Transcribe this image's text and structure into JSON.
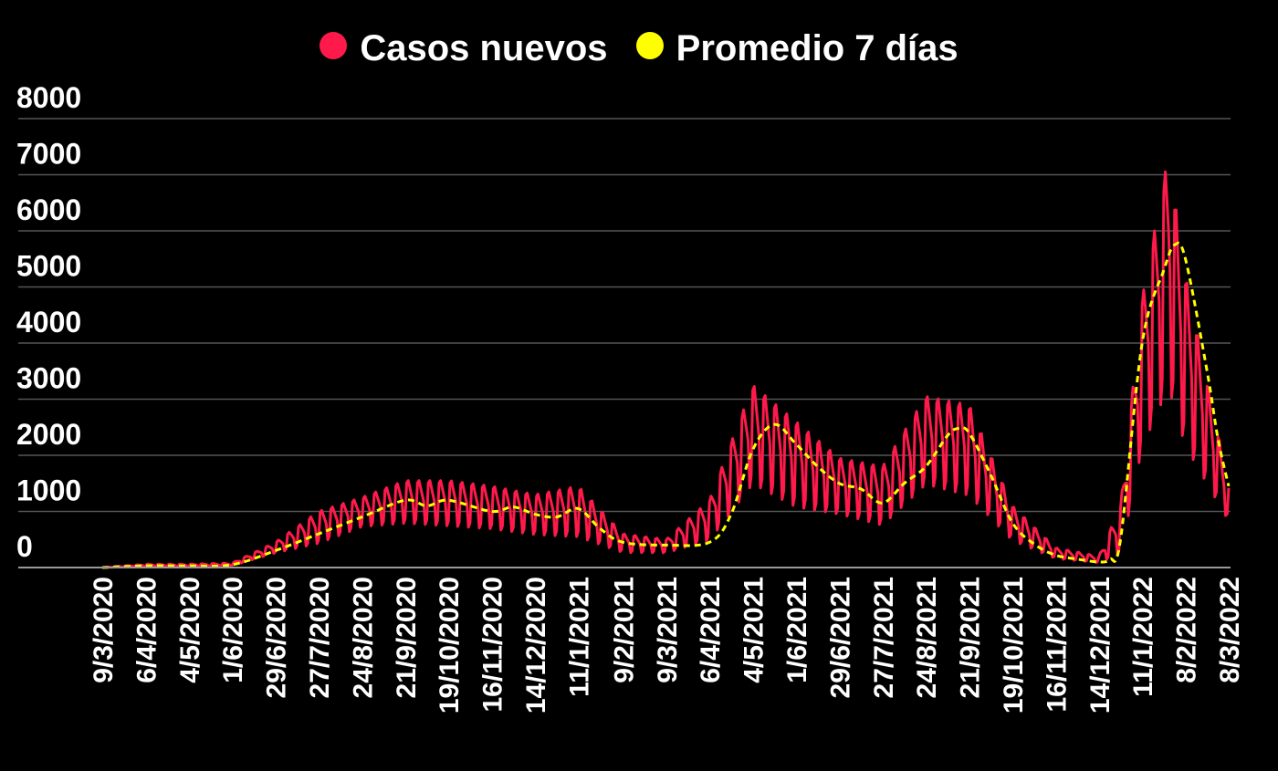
{
  "chart_data": {
    "type": "line",
    "title": "",
    "xlabel": "",
    "ylabel": "",
    "ylim": [
      0,
      8000
    ],
    "yticks": [
      0,
      1000,
      2000,
      3000,
      4000,
      5000,
      6000,
      7000,
      8000
    ],
    "grid": true,
    "legend_position": "top-center",
    "x_tick_labels": [
      "9/3/2020",
      "6/4/2020",
      "4/5/2020",
      "1/6/2020",
      "29/6/2020",
      "27/7/2020",
      "24/8/2020",
      "21/9/2020",
      "19/10/2020",
      "16/11/2020",
      "14/12/2020",
      "11/1/2021",
      "9/2/2021",
      "9/3/2021",
      "6/4/2021",
      "4/5/2021",
      "1/6/2021",
      "29/6/2021",
      "27/7/2021",
      "24/8/2021",
      "21/9/2021",
      "19/10/2021",
      "16/11/2021",
      "14/12/2021",
      "11/1/2022",
      "8/2/2022",
      "8/3/2022"
    ],
    "x_start": "9/3/2020",
    "x_end": "8/3/2022",
    "series": [
      {
        "name": "Casos nuevos",
        "color": "#ff1a4b",
        "style": "solid",
        "weekly_pattern": "oscillating daily values around the 7-day average",
        "envelope": [
          [
            "9/3/2020",
            0,
            0
          ],
          [
            "6/4/2020",
            20,
            60
          ],
          [
            "4/5/2020",
            20,
            60
          ],
          [
            "1/6/2020",
            30,
            80
          ],
          [
            "29/6/2020",
            250,
            450
          ],
          [
            "27/7/2020",
            400,
            1000
          ],
          [
            "24/8/2020",
            700,
            1250
          ],
          [
            "21/9/2020",
            750,
            1550
          ],
          [
            "19/10/2020",
            700,
            1550
          ],
          [
            "16/11/2020",
            650,
            1450
          ],
          [
            "14/12/2020",
            550,
            1300
          ],
          [
            "11/1/2021",
            500,
            1450
          ],
          [
            "9/2/2021",
            250,
            600
          ],
          [
            "9/3/2021",
            250,
            500
          ],
          [
            "6/4/2021",
            450,
            1200
          ],
          [
            "4/5/2021",
            1400,
            3250
          ],
          [
            "1/6/2021",
            1000,
            2600
          ],
          [
            "29/6/2021",
            900,
            1950
          ],
          [
            "27/7/2021",
            700,
            1800
          ],
          [
            "24/8/2021",
            1400,
            3050
          ],
          [
            "21/9/2021",
            1200,
            2900
          ],
          [
            "19/10/2021",
            450,
            1100
          ],
          [
            "16/11/2021",
            150,
            350
          ],
          [
            "14/12/2021",
            80,
            200
          ],
          [
            "28/12/2021",
            200,
            1100
          ],
          [
            "11/1/2022",
            2000,
            4800
          ],
          [
            "28/1/2022",
            3000,
            7350
          ],
          [
            "8/2/2022",
            2000,
            5200
          ],
          [
            "8/3/2022",
            800,
            1450
          ]
        ]
      },
      {
        "name": "Promedio 7 días",
        "color": "#ffff00",
        "style": "dashed",
        "points": [
          [
            "9/3/2020",
            0
          ],
          [
            "6/4/2020",
            30
          ],
          [
            "4/5/2020",
            30
          ],
          [
            "1/6/2020",
            50
          ],
          [
            "29/6/2020",
            300
          ],
          [
            "27/7/2020",
            600
          ],
          [
            "24/8/2020",
            900
          ],
          [
            "21/9/2020",
            1200
          ],
          [
            "5/10/2020",
            1100
          ],
          [
            "19/10/2020",
            1200
          ],
          [
            "16/11/2020",
            1000
          ],
          [
            "30/11/2020",
            1080
          ],
          [
            "14/12/2020",
            950
          ],
          [
            "28/12/2020",
            900
          ],
          [
            "11/1/2021",
            1050
          ],
          [
            "25/1/2021",
            700
          ],
          [
            "9/2/2021",
            450
          ],
          [
            "9/3/2021",
            400
          ],
          [
            "6/4/2021",
            450
          ],
          [
            "20/4/2021",
            950
          ],
          [
            "4/5/2021",
            2100
          ],
          [
            "18/5/2021",
            2550
          ],
          [
            "1/6/2021",
            2200
          ],
          [
            "15/6/2021",
            1800
          ],
          [
            "29/6/2021",
            1500
          ],
          [
            "13/7/2021",
            1400
          ],
          [
            "27/7/2021",
            1150
          ],
          [
            "10/8/2021",
            1500
          ],
          [
            "24/8/2021",
            1800
          ],
          [
            "7/9/2021",
            2350
          ],
          [
            "14/9/2021",
            2480
          ],
          [
            "21/9/2021",
            2400
          ],
          [
            "5/10/2021",
            1650
          ],
          [
            "19/10/2021",
            800
          ],
          [
            "2/11/2021",
            420
          ],
          [
            "16/11/2021",
            220
          ],
          [
            "30/11/2021",
            150
          ],
          [
            "14/12/2021",
            100
          ],
          [
            "21/12/2021",
            150
          ],
          [
            "28/12/2021",
            500
          ],
          [
            "11/1/2022",
            4000
          ],
          [
            "25/1/2022",
            5300
          ],
          [
            "1/2/2022",
            5750
          ],
          [
            "8/2/2022",
            5500
          ],
          [
            "22/2/2022",
            3500
          ],
          [
            "1/3/2022",
            2300
          ],
          [
            "8/3/2022",
            1450
          ]
        ]
      }
    ]
  }
}
